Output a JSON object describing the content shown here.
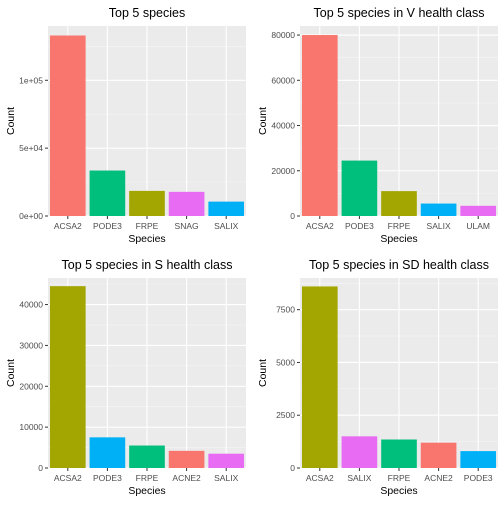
{
  "chart_data": [
    {
      "type": "bar",
      "title": "Top 5 species",
      "xlabel": "Species",
      "ylabel": "Count",
      "categories": [
        "ACSA2",
        "PODE3",
        "FRPE",
        "SNAG",
        "SALIX"
      ],
      "values": [
        133000,
        33500,
        18500,
        17800,
        10600
      ],
      "colors": [
        "#F8766D",
        "#00BF7D",
        "#A3A500",
        "#E76BF3",
        "#00B0F6"
      ],
      "ylim": [
        0,
        140000
      ],
      "yticks": [
        0,
        50000,
        100000
      ],
      "ytick_labels": [
        "0e+00",
        "5e+04",
        "1e+05"
      ],
      "grid": true,
      "legend": "none"
    },
    {
      "type": "bar",
      "title": "Top 5 species in V health class",
      "xlabel": "Species",
      "ylabel": "Count",
      "categories": [
        "ACSA2",
        "PODE3",
        "FRPE",
        "SALIX",
        "ULAM"
      ],
      "values": [
        80000,
        24500,
        11000,
        5500,
        4500
      ],
      "colors": [
        "#F8766D",
        "#00BF7D",
        "#A3A500",
        "#00B0F6",
        "#E76BF3"
      ],
      "ylim": [
        0,
        84000
      ],
      "yticks": [
        0,
        20000,
        40000,
        60000,
        80000
      ],
      "ytick_labels": [
        "0",
        "20000",
        "40000",
        "60000",
        "80000"
      ],
      "grid": true,
      "legend": "none"
    },
    {
      "type": "bar",
      "title": "Top 5 species in S health class",
      "xlabel": "Species",
      "ylabel": "Count",
      "categories": [
        "ACSA2",
        "PODE3",
        "FRPE",
        "ACNE2",
        "SALIX"
      ],
      "values": [
        44500,
        7500,
        5500,
        4200,
        3500
      ],
      "colors": [
        "#A3A500",
        "#00B0F6",
        "#00BF7D",
        "#F8766D",
        "#E76BF3"
      ],
      "ylim": [
        0,
        46500
      ],
      "yticks": [
        0,
        10000,
        20000,
        30000,
        40000
      ],
      "ytick_labels": [
        "0",
        "10000",
        "20000",
        "30000",
        "40000"
      ],
      "grid": true,
      "legend": "none"
    },
    {
      "type": "bar",
      "title": "Top 5 species in SD health class",
      "xlabel": "Species",
      "ylabel": "Count",
      "categories": [
        "ACSA2",
        "SALIX",
        "FRPE",
        "ACNE2",
        "PODE3"
      ],
      "values": [
        8600,
        1500,
        1350,
        1200,
        800
      ],
      "colors": [
        "#A3A500",
        "#E76BF3",
        "#00BF7D",
        "#F8766D",
        "#00B0F6"
      ],
      "ylim": [
        0,
        9000
      ],
      "yticks": [
        0,
        2500,
        5000,
        7500
      ],
      "ytick_labels": [
        "0",
        "2500",
        "5000",
        "7500"
      ],
      "grid": true,
      "legend": "none"
    }
  ]
}
